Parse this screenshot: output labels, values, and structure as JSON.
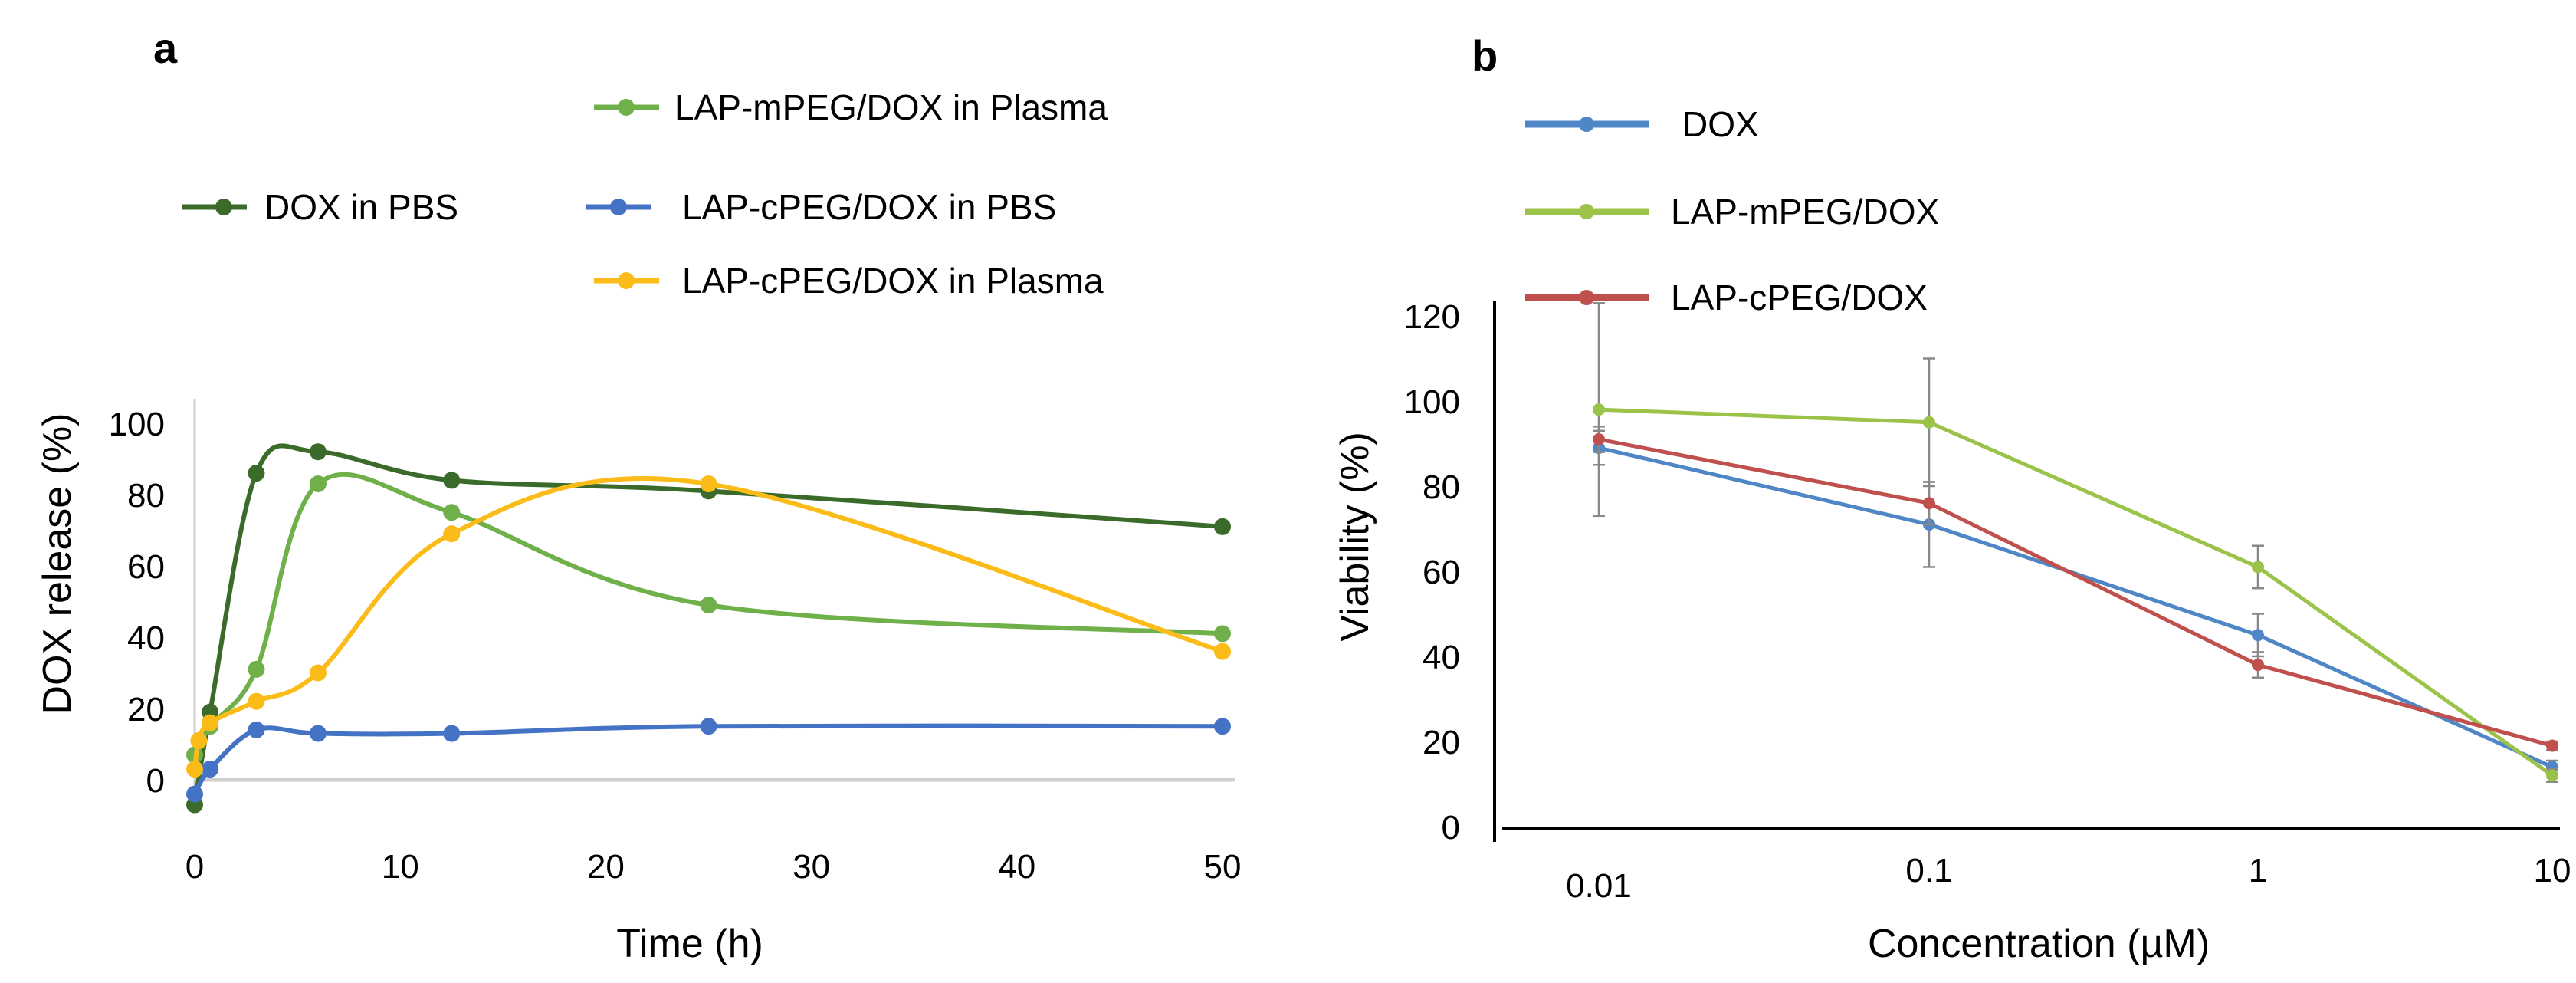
{
  "chart_data": [
    {
      "panel_label": "a",
      "type": "line",
      "xlabel": "Time (h)",
      "ylabel": "DOX release (%)",
      "xlim": [
        0,
        50
      ],
      "ylim": [
        -10,
        100
      ],
      "xticks": [
        0,
        10,
        20,
        30,
        40,
        50
      ],
      "yticks": [
        0,
        20,
        40,
        60,
        80,
        100
      ],
      "grid": false,
      "smooth": true,
      "series": [
        {
          "name": "DOX in PBS",
          "color": "#3a6b2a",
          "x": [
            0,
            0.75,
            3,
            6,
            12.5,
            25,
            50
          ],
          "y": [
            -7,
            19,
            86,
            92,
            84,
            81,
            71
          ]
        },
        {
          "name": "LAP-mPEG/DOX in Plasma",
          "color": "#6fb04a",
          "x": [
            0,
            0.75,
            3,
            6,
            12.5,
            25,
            50
          ],
          "y": [
            7,
            15,
            31,
            83,
            75,
            49,
            41
          ]
        },
        {
          "name": "LAP-cPEG/DOX in PBS",
          "color": "#4472c4",
          "x": [
            0,
            0.75,
            3,
            6,
            12.5,
            25,
            50
          ],
          "y": [
            -4,
            3,
            14,
            13,
            13,
            15,
            15
          ]
        },
        {
          "name": "LAP-cPEG/DOX in Plasma",
          "color": "#fbbc1a",
          "x": [
            0,
            0.2,
            0.75,
            3,
            6,
            12.5,
            25,
            50
          ],
          "y": [
            3,
            11,
            16,
            22,
            30,
            69,
            83,
            36
          ]
        }
      ]
    },
    {
      "panel_label": "b",
      "type": "line",
      "xlabel": "Concentration (µM)",
      "ylabel": "Viability (%)",
      "categories": [
        "0.01",
        "0.1",
        "1",
        "10"
      ],
      "ylim": [
        0,
        120
      ],
      "yticks": [
        0,
        20,
        40,
        60,
        80,
        100,
        120
      ],
      "grid": false,
      "legend": "top-right",
      "series": [
        {
          "name": "DOX",
          "color": "#4f86c6",
          "values": [
            89,
            71,
            45,
            14
          ],
          "error": [
            4,
            10,
            5,
            1.5
          ]
        },
        {
          "name": "LAP-mPEG/DOX",
          "color": "#9bc34a",
          "values": [
            98,
            95,
            61,
            12
          ],
          "error": [
            25,
            15,
            5,
            1.5
          ]
        },
        {
          "name": "LAP-cPEG/DOX",
          "color": "#c0504d",
          "values": [
            91,
            76,
            38,
            19
          ],
          "error": [
            3,
            5,
            3,
            1
          ]
        }
      ]
    }
  ]
}
